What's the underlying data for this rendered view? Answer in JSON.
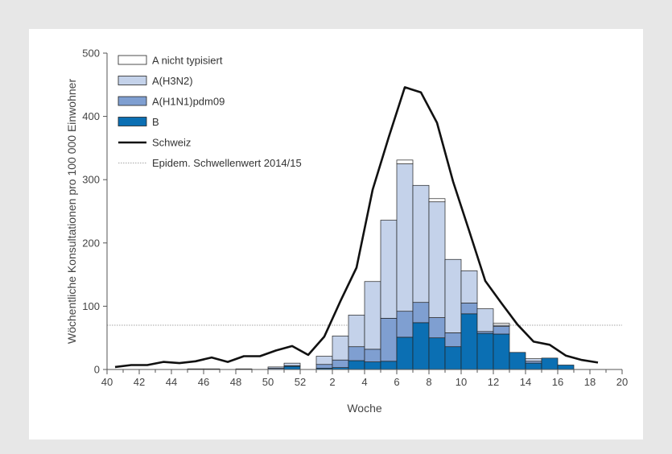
{
  "chart_data": {
    "type": "bar",
    "title": "",
    "xlabel": "Woche",
    "ylabel": "Wöchentliche Konsultationen pro 100 000 Einwohner",
    "ylim": [
      0,
      500
    ],
    "yticks": [
      0,
      100,
      200,
      300,
      400,
      500
    ],
    "weeks": [
      "40",
      "41",
      "42",
      "43",
      "44",
      "45",
      "46",
      "47",
      "48",
      "49",
      "50",
      "51",
      "52",
      "1",
      "2",
      "3",
      "4",
      "5",
      "6",
      "7",
      "8",
      "9",
      "10",
      "11",
      "12",
      "13",
      "14",
      "15",
      "16",
      "17",
      "18",
      "19",
      "20"
    ],
    "x_tick_labels": [
      "40",
      "42",
      "44",
      "46",
      "48",
      "50",
      "52",
      "2",
      "4",
      "6",
      "8",
      "10",
      "12",
      "14",
      "16",
      "18",
      "20"
    ],
    "stacked": true,
    "series": [
      {
        "name": "B",
        "color": "#0b6fb3",
        "values": [
          0,
          0,
          0,
          0,
          0,
          0,
          0,
          0,
          0,
          0,
          0,
          5,
          0,
          2,
          3,
          14,
          12,
          13,
          51,
          74,
          50,
          36,
          88,
          57,
          56,
          27,
          10,
          18,
          7,
          0,
          0,
          0,
          0
        ]
      },
      {
        "name": "A(H1N1)pdm09",
        "color": "#7f9fd1",
        "values": [
          0,
          0,
          0,
          0,
          0,
          1,
          0,
          0,
          0,
          0,
          2,
          1,
          0,
          6,
          12,
          22,
          20,
          68,
          41,
          32,
          32,
          22,
          17,
          3,
          12,
          0,
          3,
          0,
          0,
          0,
          0,
          0,
          0
        ]
      },
      {
        "name": "A(H3N2)",
        "color": "#c4d2ea",
        "values": [
          0,
          0,
          0,
          0,
          0,
          0,
          1,
          0,
          1,
          0,
          2,
          4,
          0,
          13,
          38,
          50,
          107,
          155,
          233,
          185,
          183,
          116,
          51,
          36,
          2,
          0,
          4,
          0,
          0,
          0,
          0,
          0,
          0
        ]
      },
      {
        "name": "A nicht typisiert",
        "color": "#ffffff",
        "values": [
          0,
          0,
          0,
          0,
          0,
          0,
          0,
          0,
          0,
          0,
          0,
          0,
          0,
          0,
          0,
          0,
          0,
          0,
          6,
          0,
          5,
          0,
          0,
          0,
          3,
          0,
          0,
          0,
          0,
          0,
          0,
          0,
          0
        ]
      }
    ],
    "line": {
      "name": "Schweiz",
      "color": "#111111",
      "values": [
        4,
        7,
        7,
        12,
        10,
        13,
        19,
        12,
        21,
        21,
        30,
        37,
        23,
        52,
        108,
        161,
        284,
        367,
        446,
        438,
        390,
        297,
        219,
        140,
        105,
        71,
        44,
        39,
        22,
        15,
        11,
        null,
        null
      ]
    },
    "threshold": {
      "name": "Epidem. Schwellenwert 2014/15",
      "value": 70
    },
    "legend": {
      "position": "top-left",
      "items": [
        {
          "label": "A nicht typisiert",
          "kind": "box",
          "color": "#ffffff"
        },
        {
          "label": "A(H3N2)",
          "kind": "box",
          "color": "#c4d2ea"
        },
        {
          "label": "A(H1N1)pdm09",
          "kind": "box",
          "color": "#7f9fd1"
        },
        {
          "label": "B",
          "kind": "box",
          "color": "#0b6fb3"
        },
        {
          "label": "Schweiz",
          "kind": "line",
          "color": "#111111"
        },
        {
          "label": "Epidem. Schwellenwert 2014/15",
          "kind": "dotted",
          "color": "#888888"
        }
      ]
    }
  }
}
